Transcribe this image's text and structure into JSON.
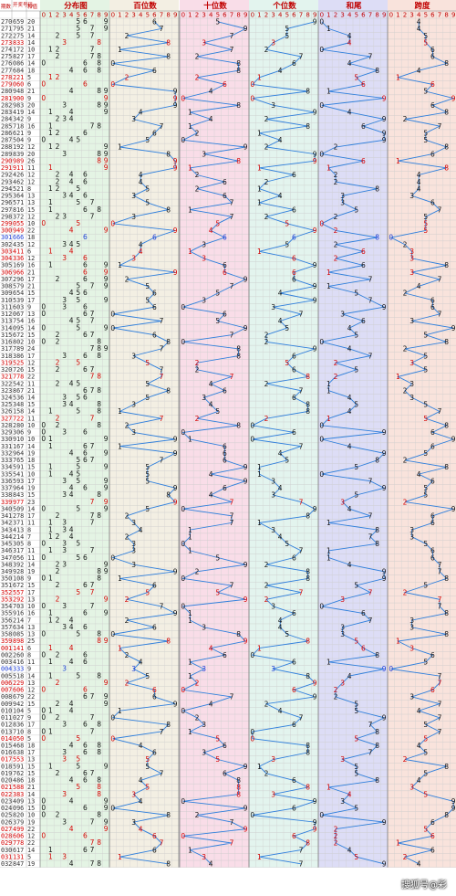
{
  "header": {
    "period_label": "期数",
    "draw_label": "开奖号码",
    "sum_label": "和值",
    "sections": [
      "分布图",
      "百位数",
      "十位数",
      "个位数",
      "和尾",
      "跨度"
    ],
    "digits": [
      "0",
      "1",
      "2",
      "3",
      "4",
      "5",
      "6",
      "7",
      "8",
      "9"
    ]
  },
  "watermark": "搜狐号@彩",
  "colors": {
    "header_red": "#c00000",
    "line_blue": "#2f7fdc",
    "value_red": "#d40000",
    "value_blue": "#1f3fd6",
    "bg_distribution": "#e4f4e4",
    "bg_hundreds": "#f3efe3",
    "bg_tens": "#f9dde8",
    "bg_units": "#e3f4ee",
    "bg_sumtail": "#ddddf6",
    "bg_span": "#f9e3dc"
  },
  "chart_data": {
    "type": "table",
    "columns": [
      "period",
      "draw",
      "sum",
      "hundreds",
      "tens",
      "units",
      "sum_tail",
      "span"
    ],
    "rows": [
      [
        "270",
        "659",
        "20"
      ],
      [
        "271",
        "795",
        "21"
      ],
      [
        "272",
        "275",
        "14"
      ],
      [
        "273",
        "833",
        "14"
      ],
      [
        "274",
        "172",
        "10"
      ],
      [
        "275",
        "827",
        "17"
      ],
      [
        "276",
        "086",
        "14"
      ],
      [
        "277",
        "684",
        "18"
      ],
      [
        "278",
        "221",
        "5"
      ],
      [
        "279",
        "060",
        "6"
      ],
      [
        "280",
        "948",
        "21"
      ],
      [
        "281",
        "900",
        "9"
      ],
      [
        "282",
        "983",
        "20"
      ],
      [
        "283",
        "419",
        "14"
      ],
      [
        "284",
        "342",
        "9"
      ],
      [
        "285",
        "718",
        "16"
      ],
      [
        "286",
        "621",
        "9"
      ],
      [
        "287",
        "504",
        "9"
      ],
      [
        "288",
        "192",
        "12"
      ],
      [
        "289",
        "839",
        "20"
      ],
      [
        "290",
        "989",
        "26"
      ],
      [
        "291",
        "911",
        "11"
      ],
      [
        "292",
        "426",
        "12"
      ],
      [
        "293",
        "462",
        "12"
      ],
      [
        "294",
        "521",
        "8"
      ],
      [
        "295",
        "364",
        "13"
      ],
      [
        "296",
        "571",
        "13"
      ],
      [
        "297",
        "816",
        "15"
      ],
      [
        "298",
        "372",
        "12"
      ],
      [
        "299",
        "055",
        "10"
      ],
      [
        "300",
        "949",
        "22"
      ],
      [
        "301",
        "666",
        "18"
      ],
      [
        "302",
        "435",
        "12"
      ],
      [
        "303",
        "411",
        "6"
      ],
      [
        "304",
        "336",
        "12"
      ],
      [
        "305",
        "169",
        "16"
      ],
      [
        "306",
        "966",
        "21"
      ],
      [
        "307",
        "296",
        "17"
      ],
      [
        "308",
        "579",
        "21"
      ],
      [
        "309",
        "654",
        "15"
      ],
      [
        "310",
        "539",
        "17"
      ],
      [
        "311",
        "603",
        "9"
      ],
      [
        "312",
        "067",
        "13"
      ],
      [
        "313",
        "754",
        "16"
      ],
      [
        "314",
        "095",
        "14"
      ],
      [
        "315",
        "672",
        "15"
      ],
      [
        "316",
        "802",
        "10"
      ],
      [
        "317",
        "789",
        "24"
      ],
      [
        "318",
        "386",
        "17"
      ],
      [
        "319",
        "525",
        "12"
      ],
      [
        "320",
        "726",
        "15"
      ],
      [
        "321",
        "778",
        "22"
      ],
      [
        "322",
        "542",
        "11"
      ],
      [
        "323",
        "867",
        "21"
      ],
      [
        "324",
        "536",
        "14"
      ],
      [
        "325",
        "348",
        "15"
      ],
      [
        "326",
        "158",
        "14"
      ],
      [
        "327",
        "722",
        "11"
      ],
      [
        "328",
        "280",
        "10"
      ],
      [
        "329",
        "306",
        "9"
      ],
      [
        "330",
        "910",
        "10"
      ],
      [
        "331",
        "167",
        "14"
      ],
      [
        "332",
        "964",
        "19"
      ],
      [
        "333",
        "765",
        "18"
      ],
      [
        "334",
        "591",
        "15"
      ],
      [
        "335",
        "541",
        "10"
      ],
      [
        "336",
        "593",
        "17"
      ],
      [
        "337",
        "964",
        "19"
      ],
      [
        "338",
        "843",
        "15"
      ],
      [
        "339",
        "977",
        "23"
      ],
      [
        "340",
        "509",
        "14"
      ],
      [
        "341",
        "278",
        "17"
      ],
      [
        "342",
        "371",
        "11"
      ],
      [
        "343",
        "413",
        "8"
      ],
      [
        "344",
        "214",
        "7"
      ],
      [
        "345",
        "305",
        "8"
      ],
      [
        "346",
        "317",
        "11"
      ],
      [
        "347",
        "056",
        "11"
      ],
      [
        "348",
        "392",
        "14"
      ],
      [
        "349",
        "928",
        "19"
      ],
      [
        "350",
        "108",
        "9"
      ],
      [
        "351",
        "672",
        "15"
      ],
      [
        "352",
        "557",
        "17"
      ],
      [
        "353",
        "292",
        "13"
      ],
      [
        "354",
        "703",
        "10"
      ],
      [
        "355",
        "916",
        "16"
      ],
      [
        "356",
        "214",
        "7"
      ],
      [
        "357",
        "634",
        "13"
      ],
      [
        "358",
        "085",
        "13"
      ],
      [
        "359",
        "898",
        "25"
      ],
      [
        "001",
        "141",
        "6"
      ],
      [
        "002",
        "260",
        "8"
      ],
      [
        "003",
        "416",
        "11"
      ],
      [
        "004",
        "333",
        "9"
      ],
      [
        "005",
        "518",
        "14"
      ],
      [
        "006",
        "229",
        "13"
      ],
      [
        "007",
        "606",
        "12"
      ],
      [
        "008",
        "679",
        "22"
      ],
      [
        "009",
        "942",
        "15"
      ],
      [
        "010",
        "104",
        "5"
      ],
      [
        "011",
        "027",
        "9"
      ],
      [
        "012",
        "836",
        "17"
      ],
      [
        "013",
        "710",
        "8"
      ],
      [
        "014",
        "050",
        "5"
      ],
      [
        "015",
        "468",
        "18"
      ],
      [
        "016",
        "638",
        "17"
      ],
      [
        "017",
        "553",
        "13"
      ],
      [
        "018",
        "591",
        "15"
      ],
      [
        "019",
        "762",
        "15"
      ],
      [
        "020",
        "486",
        "18"
      ],
      [
        "021",
        "588",
        "21"
      ],
      [
        "022",
        "383",
        "14"
      ],
      [
        "023",
        "409",
        "13"
      ],
      [
        "024",
        "096",
        "15"
      ],
      [
        "025",
        "820",
        "10"
      ],
      [
        "026",
        "379",
        "19"
      ],
      [
        "027",
        "499",
        "22"
      ],
      [
        "028",
        "606",
        "12"
      ],
      [
        "029",
        "778",
        "22"
      ],
      [
        "030",
        "617",
        "14"
      ],
      [
        "031",
        "131",
        "5"
      ],
      [
        "032",
        "847",
        "19"
      ]
    ]
  }
}
